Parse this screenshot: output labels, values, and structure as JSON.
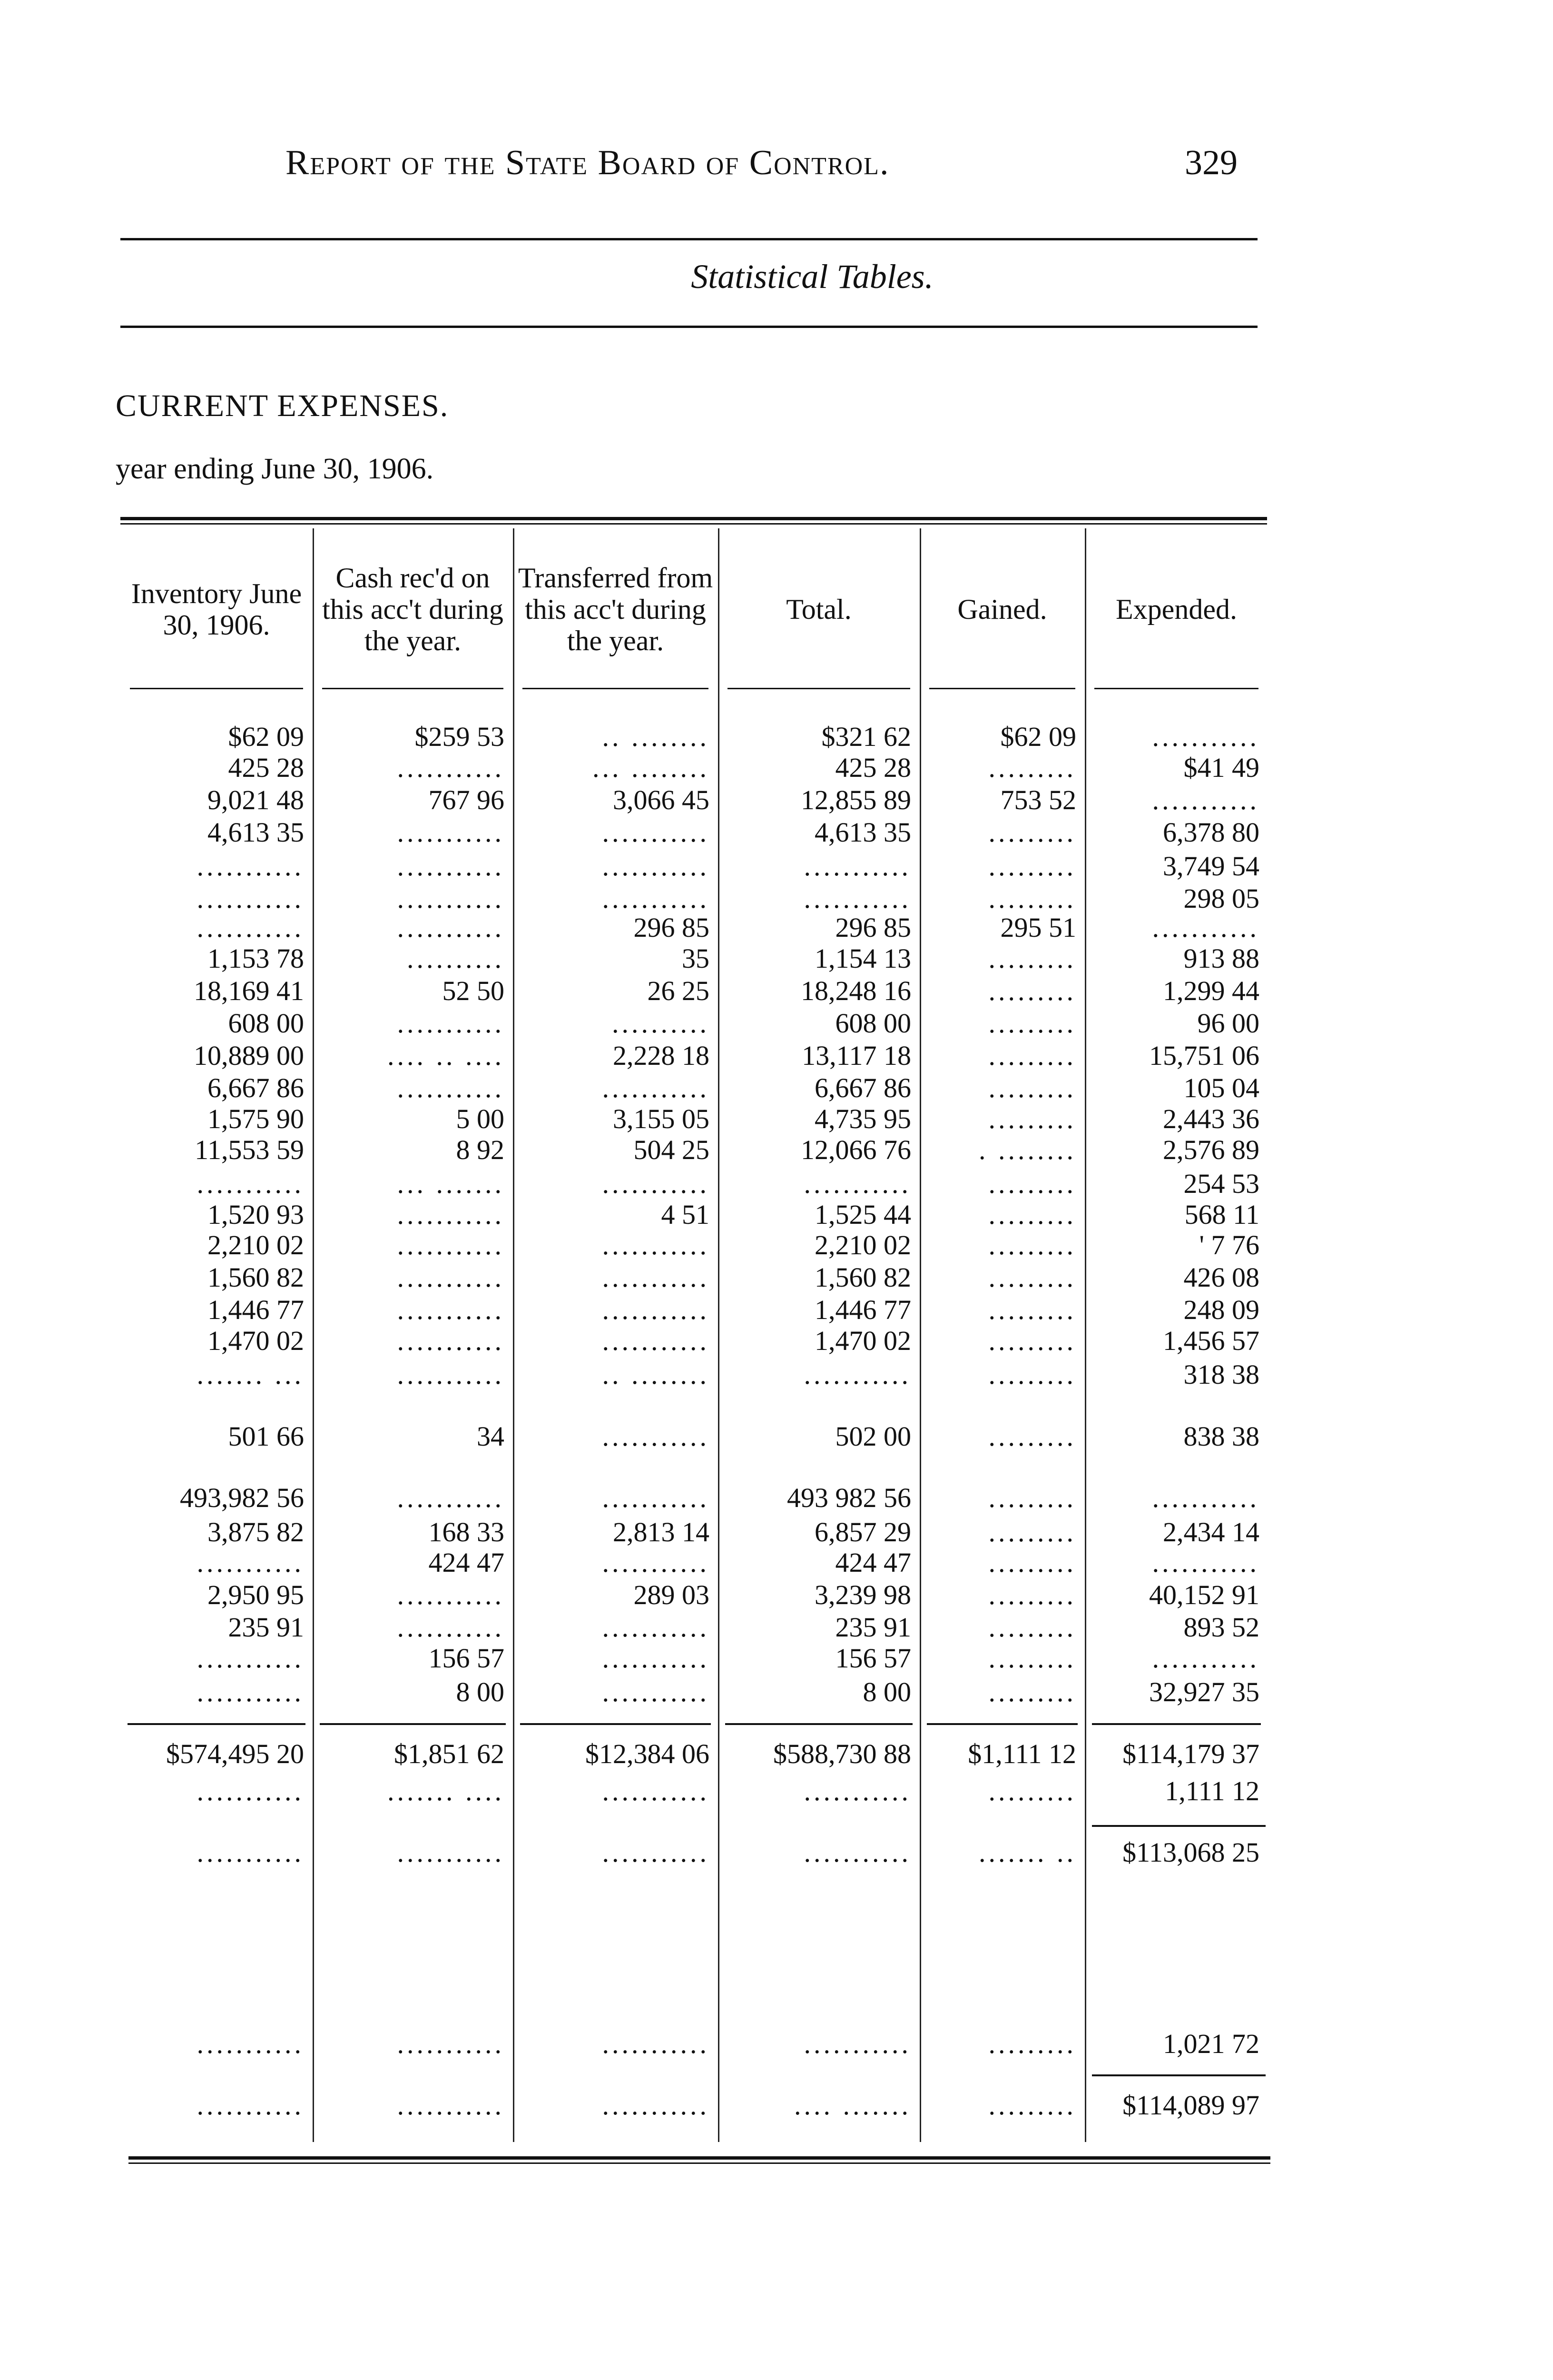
{
  "header": {
    "running_title": "Report of the State Board of Control.",
    "page_number": "329"
  },
  "subtitle": "Statistical Tables.",
  "section_title": "CURRENT EXPENSES.",
  "period": "year ending June 30, 1906.",
  "table": {
    "columns": [
      "Inventory June 30, 1906.",
      "Cash rec'd on this acc't during the year.",
      "Transferred from this acc't during the year.",
      "Total.",
      "Gained.",
      "Expended."
    ],
    "rows": [
      [
        "$62 09",
        "$259 53",
        ".. ........",
        "$321 62",
        "$62 09",
        "..........."
      ],
      [
        "425 28",
        "...........",
        "... ........",
        "425 28",
        ".........",
        "$41 49"
      ],
      [
        "9,021 48",
        "767 96",
        "3,066 45",
        "12,855 89",
        "753 52",
        "..........."
      ],
      [
        "4,613 35",
        "...........",
        "...........",
        "4,613 35",
        ".........",
        "6,378 80"
      ],
      [
        "...........",
        "...........",
        "...........",
        "...........",
        ".........",
        "3,749 54"
      ],
      [
        "...........",
        "...........",
        "...........",
        "...........",
        ".........",
        "298 05"
      ],
      [
        "...........",
        "...........",
        "296 85",
        "296 85",
        "295 51",
        "..........."
      ],
      [
        "1,153 78",
        "..........",
        "35",
        "1,154 13",
        ".........",
        "913 88"
      ],
      [
        "18,169 41",
        "52 50",
        "26 25",
        "18,248 16",
        ".........",
        "1,299 44"
      ],
      [
        "608 00",
        "...........",
        "..........",
        "608 00",
        ".........",
        "96 00"
      ],
      [
        "10,889 00",
        ".... .. ....",
        "2,228 18",
        "13,117 18",
        ".........",
        "15,751 06"
      ],
      [
        "6,667 86",
        "...........",
        "...........",
        "6,667 86",
        ".........",
        "105 04"
      ],
      [
        "1,575 90",
        "5 00",
        "3,155 05",
        "4,735 95",
        ".........",
        "2,443 36"
      ],
      [
        "11,553 59",
        "8 92",
        "504 25",
        "12,066 76",
        ". ........",
        "2,576 89"
      ],
      [
        "...........",
        "... .......",
        "...........",
        "...........",
        ".........",
        "254 53"
      ],
      [
        "1,520 93",
        "...........",
        "4 51",
        "1,525 44",
        ".........",
        "568 11"
      ],
      [
        "2,210 02",
        "...........",
        "...........",
        "2,210 02",
        ".........",
        "' 7 76"
      ],
      [
        "1,560 82",
        "...........",
        "...........",
        "1,560 82",
        ".........",
        "426 08"
      ],
      [
        "1,446 77",
        "...........",
        "...........",
        "1,446 77",
        ".........",
        "248 09"
      ],
      [
        "1,470 02",
        "...........",
        "...........",
        "1,470 02",
        ".........",
        "1,456 57"
      ],
      [
        "....... ...",
        "...........",
        ".. ........",
        "...........",
        ".........",
        "318 38"
      ],
      [
        "501 66",
        "34",
        "...........",
        "502 00",
        ".........",
        "838 38"
      ],
      [
        "493,982 56",
        "...........",
        "...........",
        "493 982 56",
        ".........",
        "..........."
      ],
      [
        "3,875 82",
        "168 33",
        "2,813 14",
        "6,857 29",
        ".........",
        "2,434 14"
      ],
      [
        "...........",
        "424 47",
        "...........",
        "424 47",
        ".........",
        "..........."
      ],
      [
        "2,950 95",
        "...........",
        "289 03",
        "3,239 98",
        ".........",
        "40,152 91"
      ],
      [
        "235 91",
        "...........",
        "...........",
        "235 91",
        ".........",
        "893 52"
      ],
      [
        "...........",
        "156 57",
        "...........",
        "156 57",
        ".........",
        "..........."
      ],
      [
        "...........",
        "8 00",
        "...........",
        "8 00",
        ".........",
        "32,927 35"
      ]
    ],
    "totals": [
      "$574,495 20",
      "$1,851 62",
      "$12,384 06",
      "$588,730 88",
      "$1,111 12",
      "$114,179 37"
    ],
    "summary_rows": [
      [
        "...........",
        "....... ....",
        "...........",
        "...........",
        ".........",
        "1,111 12"
      ],
      [
        "...........",
        "...........",
        "...........",
        "...........",
        "....... ..",
        "$113,068 25"
      ],
      [
        "...........",
        "...........",
        "...........",
        "...........",
        ".........",
        "1,021 72"
      ],
      [
        "...........",
        "...........",
        "...........",
        ".... .......",
        ".........",
        "$114,089 97"
      ]
    ]
  }
}
